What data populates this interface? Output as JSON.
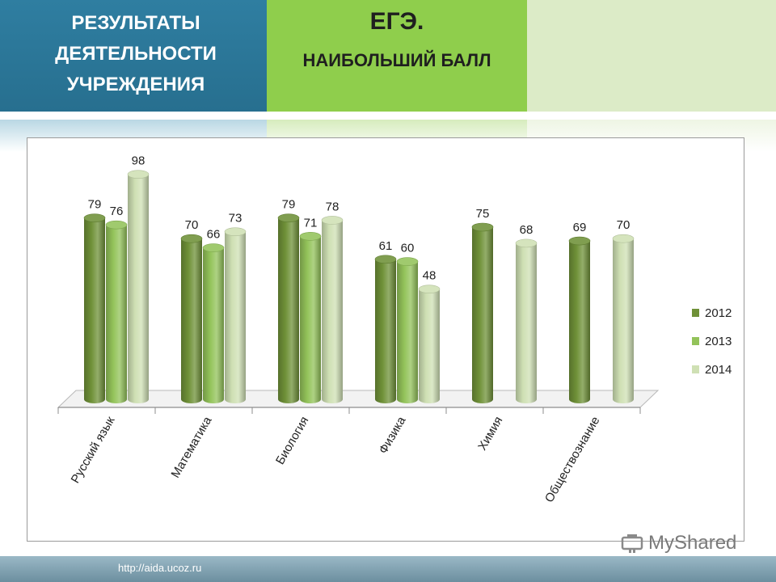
{
  "header": {
    "left_lines": [
      "РЕЗУЛЬТАТЫ",
      "ДЕЯТЕЛЬНОСТИ",
      "УЧРЕЖДЕНИЯ"
    ],
    "title": "ЕГЭ.",
    "subtitle": "НАИБОЛЬШИЙ БАЛЛ"
  },
  "footer": {
    "url": "http://aida.ucoz.ru"
  },
  "watermark": {
    "text": "MyShared"
  },
  "colors": {
    "s2012": "#6f9138",
    "s2013": "#93c35a",
    "s2014": "#cfe0b4"
  },
  "chart_data": {
    "type": "bar",
    "title": "",
    "categories": [
      "Русский язык",
      "Математика",
      "Биология",
      "Физика",
      "Химия",
      "Обществознание"
    ],
    "series": [
      {
        "name": "2012",
        "values": [
          79,
          70,
          79,
          61,
          75,
          69
        ]
      },
      {
        "name": "2013",
        "values": [
          76,
          66,
          71,
          60,
          null,
          null
        ]
      },
      {
        "name": "2014",
        "values": [
          98,
          73,
          78,
          48,
          68,
          70
        ]
      }
    ],
    "ylim": [
      0,
      100
    ],
    "grid": false,
    "legend": "right"
  }
}
